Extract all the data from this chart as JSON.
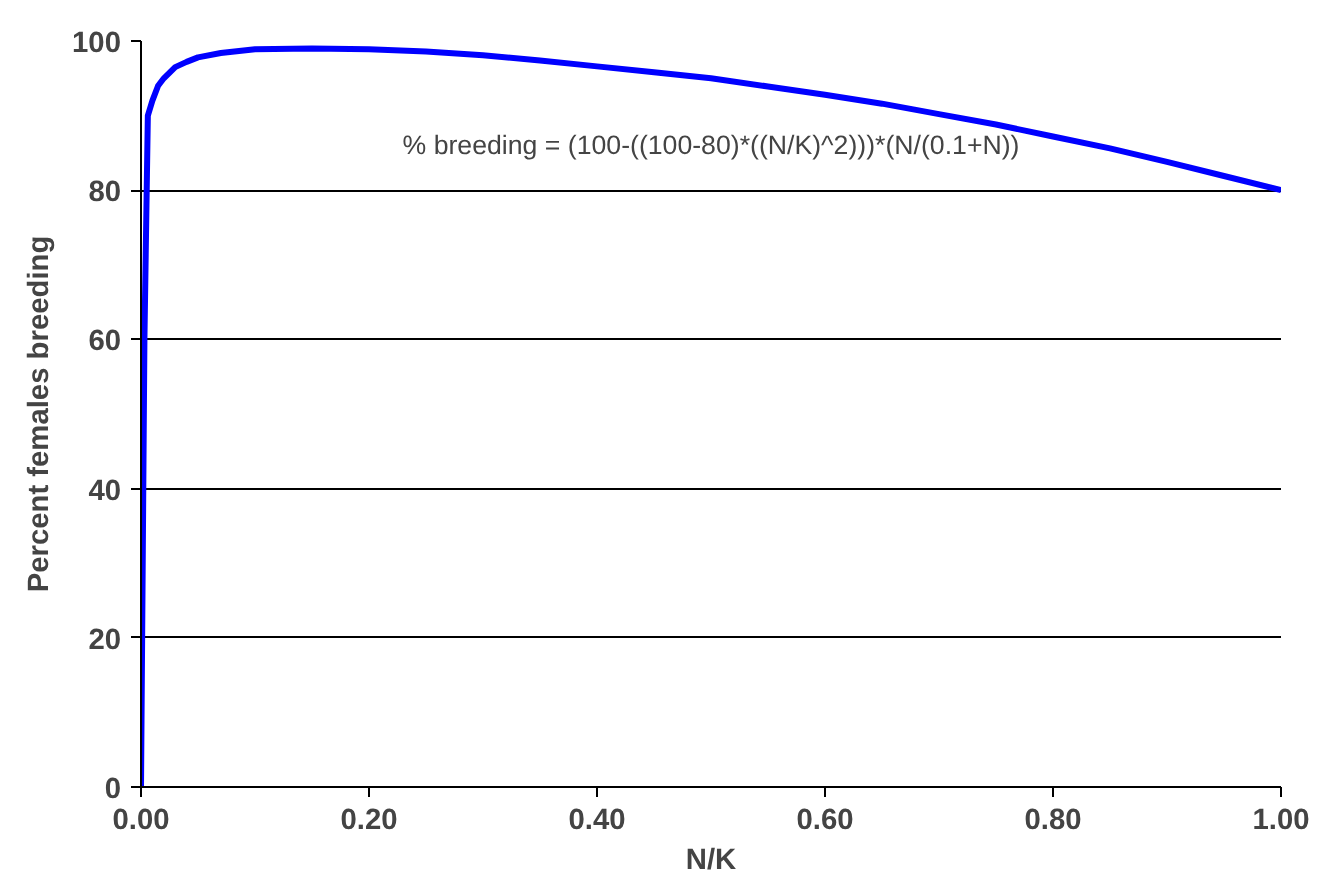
{
  "chart_data": {
    "type": "line",
    "xlabel": "N/K",
    "ylabel": "Percent females breeding",
    "x": [
      0,
      0.003,
      0.006,
      0.01,
      0.015,
      0.02,
      0.03,
      0.04,
      0.05,
      0.07,
      0.1,
      0.15,
      0.2,
      0.25,
      0.3,
      0.35,
      0.4,
      0.45,
      0.5,
      0.55,
      0.6,
      0.65,
      0.7,
      0.75,
      0.8,
      0.85,
      0.9,
      0.95,
      1.0
    ],
    "series": [
      {
        "color": "#0000ff",
        "values": [
          0,
          60,
          90,
          92,
          94,
          95,
          96.5,
          97.2,
          97.8,
          98.4,
          98.9,
          99,
          98.9,
          98.6,
          98.1,
          97.4,
          96.6,
          95.8,
          95,
          93.9,
          92.8,
          91.6,
          90.2,
          88.8,
          87.2,
          85.6,
          83.8,
          81.9,
          80
        ]
      }
    ],
    "xlim": [
      0,
      1
    ],
    "ylim": [
      0,
      100
    ],
    "xticks": [
      {
        "value": 0,
        "label": "0.00"
      },
      {
        "value": 0.2,
        "label": "0.20"
      },
      {
        "value": 0.4,
        "label": "0.40"
      },
      {
        "value": 0.6,
        "label": "0.60"
      },
      {
        "value": 0.8,
        "label": "0.80"
      },
      {
        "value": 1,
        "label": "1.00"
      }
    ],
    "yticks": [
      0,
      20,
      40,
      60,
      80,
      100
    ],
    "grid": "y",
    "marker": "none",
    "line_style": "solid",
    "annotations": [
      "% breeding = (100-((100-80)*((N/K)^2)))*(N/(0.1+N))"
    ]
  }
}
